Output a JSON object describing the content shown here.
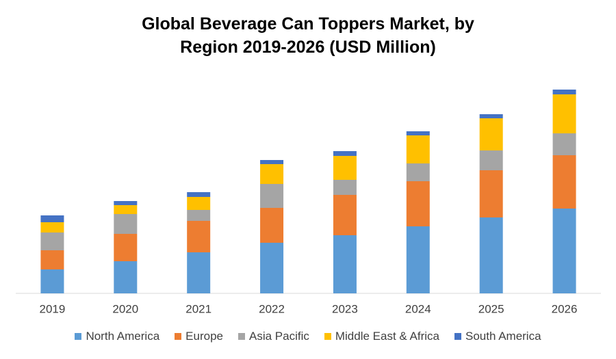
{
  "chart_data": {
    "type": "stacked_bar",
    "title": "Global Beverage Can Toppers Market, by Region 2019-2026 (USD Million)",
    "categories": [
      "2019",
      "2020",
      "2021",
      "2022",
      "2023",
      "2024",
      "2025",
      "2026"
    ],
    "series": [
      {
        "name": "North America",
        "color": "#5b9bd5",
        "values": [
          35,
          47,
          60,
          74,
          85,
          98,
          111,
          124
        ]
      },
      {
        "name": "Europe",
        "color": "#ed7d31",
        "values": [
          28,
          40,
          46,
          51,
          59,
          66,
          69,
          78
        ]
      },
      {
        "name": "Asia Pacific",
        "color": "#a5a5a5",
        "values": [
          26,
          29,
          16,
          35,
          22,
          26,
          29,
          32
        ]
      },
      {
        "name": "Middle East & Africa",
        "color": "#ffc000",
        "values": [
          15,
          13,
          19,
          29,
          35,
          41,
          47,
          57
        ]
      },
      {
        "name": "South America",
        "color": "#4472c4",
        "values": [
          10,
          6,
          7,
          6,
          7,
          6,
          6,
          7
        ]
      }
    ],
    "ylim": [
      0,
      310
    ],
    "legend": "bottom"
  }
}
